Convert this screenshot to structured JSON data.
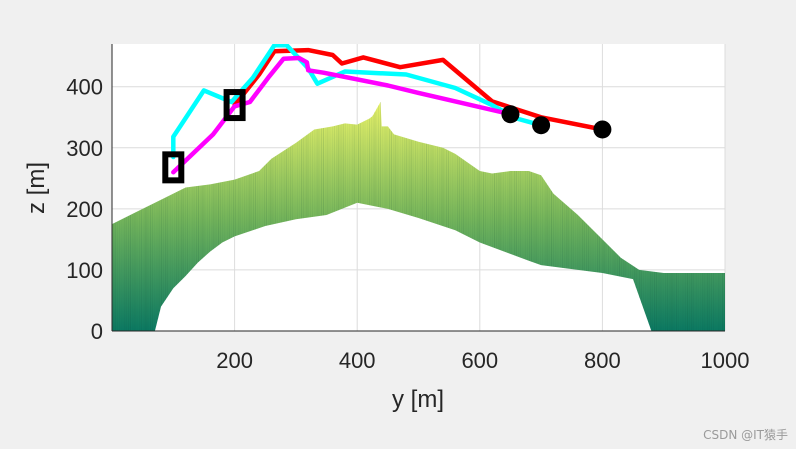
{
  "chart_data": {
    "type": "line",
    "title": "",
    "xlabel": "y [m]",
    "ylabel": "z [m]",
    "xlim": [
      0,
      1000
    ],
    "ylim": [
      0,
      470
    ],
    "xticks": [
      200,
      400,
      600,
      800,
      1000
    ],
    "yticks": [
      0,
      100,
      200,
      300,
      400
    ],
    "grid": true,
    "terrain": {
      "name": "terrain-surface",
      "color_low": "#0b7a63",
      "color_mid": "#78b85c",
      "color_high": "#ecf56a",
      "top_profile": [
        [
          0,
          175
        ],
        [
          40,
          195
        ],
        [
          80,
          215
        ],
        [
          120,
          235
        ],
        [
          160,
          240
        ],
        [
          200,
          248
        ],
        [
          240,
          262
        ],
        [
          260,
          282
        ],
        [
          300,
          308
        ],
        [
          330,
          330
        ],
        [
          360,
          335
        ],
        [
          380,
          340
        ],
        [
          400,
          338
        ],
        [
          420,
          348
        ],
        [
          440,
          335
        ],
        [
          460,
          322
        ],
        [
          500,
          310
        ],
        [
          540,
          300
        ],
        [
          560,
          290
        ],
        [
          600,
          262
        ],
        [
          620,
          258
        ],
        [
          650,
          262
        ],
        [
          680,
          262
        ],
        [
          700,
          255
        ],
        [
          720,
          225
        ],
        [
          760,
          190
        ],
        [
          800,
          150
        ],
        [
          830,
          120
        ],
        [
          860,
          100
        ],
        [
          900,
          95
        ],
        [
          1000,
          95
        ]
      ],
      "peaks": [
        [
          425,
          352
        ],
        [
          438,
          375
        ],
        [
          450,
          335
        ]
      ],
      "bottom_profile": [
        [
          0,
          0
        ],
        [
          70,
          0
        ],
        [
          80,
          40
        ],
        [
          100,
          70
        ],
        [
          120,
          90
        ],
        [
          140,
          112
        ],
        [
          160,
          130
        ],
        [
          180,
          145
        ],
        [
          200,
          155
        ],
        [
          250,
          172
        ],
        [
          300,
          183
        ],
        [
          350,
          190
        ],
        [
          400,
          210
        ],
        [
          450,
          200
        ],
        [
          500,
          185
        ],
        [
          560,
          165
        ],
        [
          600,
          145
        ],
        [
          640,
          130
        ],
        [
          680,
          115
        ],
        [
          700,
          108
        ],
        [
          760,
          100
        ],
        [
          800,
          95
        ],
        [
          850,
          85
        ],
        [
          880,
          0
        ],
        [
          1000,
          0
        ]
      ]
    },
    "series": [
      {
        "name": "red-path",
        "color": "#ff0000",
        "points": [
          [
            200,
            370
          ],
          [
            240,
            420
          ],
          [
            265,
            458
          ],
          [
            320,
            460
          ],
          [
            360,
            452
          ],
          [
            375,
            438
          ],
          [
            410,
            448
          ],
          [
            470,
            432
          ],
          [
            540,
            444
          ],
          [
            620,
            376
          ],
          [
            700,
            350
          ],
          [
            800,
            330
          ]
        ]
      },
      {
        "name": "cyan-path",
        "color": "#00ffff",
        "points": [
          [
            100,
            285
          ],
          [
            100,
            318
          ],
          [
            150,
            394
          ],
          [
            195,
            375
          ],
          [
            230,
            415
          ],
          [
            265,
            468
          ],
          [
            285,
            468
          ],
          [
            320,
            430
          ],
          [
            335,
            405
          ],
          [
            380,
            425
          ],
          [
            480,
            420
          ],
          [
            560,
            398
          ],
          [
            620,
            370
          ],
          [
            660,
            348
          ],
          [
            700,
            337
          ]
        ]
      },
      {
        "name": "magenta-path",
        "color": "#ff00ff",
        "points": [
          [
            100,
            260
          ],
          [
            165,
            322
          ],
          [
            200,
            368
          ],
          [
            225,
            375
          ],
          [
            255,
            415
          ],
          [
            280,
            446
          ],
          [
            305,
            447
          ],
          [
            318,
            440
          ],
          [
            320,
            427
          ],
          [
            345,
            423
          ],
          [
            450,
            402
          ],
          [
            500,
            390
          ],
          [
            560,
            376
          ],
          [
            650,
            355
          ]
        ]
      }
    ],
    "start_markers": [
      {
        "name": "start-marker-1",
        "x": 100,
        "y": 268
      },
      {
        "name": "start-marker-2",
        "x": 200,
        "y": 370
      }
    ],
    "end_markers": [
      {
        "name": "end-marker-1",
        "x": 650,
        "y": 355
      },
      {
        "name": "end-marker-2",
        "x": 700,
        "y": 337
      },
      {
        "name": "end-marker-3",
        "x": 800,
        "y": 330
      }
    ]
  },
  "watermark": "CSDN @IT猿手"
}
